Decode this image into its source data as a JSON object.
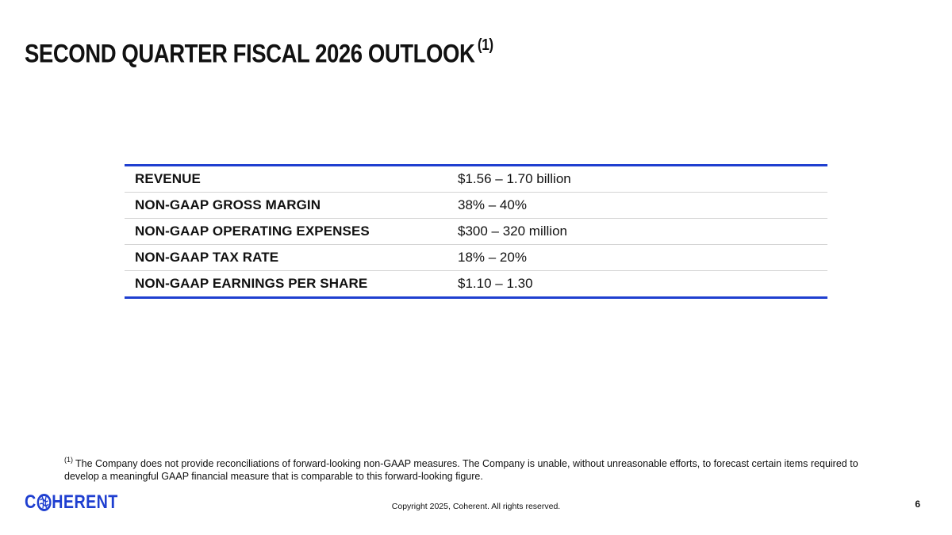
{
  "slide": {
    "title": "SECOND QUARTER FISCAL 2026 OUTLOOK",
    "title_footnote_marker": "(1)"
  },
  "outlook_table": {
    "rows": [
      {
        "metric": "REVENUE",
        "value": "$1.56 – 1.70 billion"
      },
      {
        "metric": "NON-GAAP GROSS MARGIN",
        "value": "38% – 40%"
      },
      {
        "metric": "NON-GAAP OPERATING EXPENSES",
        "value": "$300 – 320 million"
      },
      {
        "metric": "NON-GAAP TAX RATE",
        "value": "18% – 20%"
      },
      {
        "metric": "NON-GAAP EARNINGS PER SHARE",
        "value": "$1.10 – 1.30"
      }
    ]
  },
  "footnote": {
    "marker": "(1)",
    "text": "The Company does not provide reconciliations of forward-looking non-GAAP measures. The Company is unable, without unreasonable efforts, to forecast certain items required to develop a meaningful GAAP financial measure that is comparable to this forward-looking figure."
  },
  "footer": {
    "logo_prefix": "C",
    "logo_suffix": "HERENT",
    "logo_icon": "globe-o-icon",
    "copyright": "Copyright 2025, Coherent. All rights reserved.",
    "page_number": "6"
  },
  "colors": {
    "brand_blue": "#1f3fd0",
    "text": "#111111",
    "row_divider": "#d4d4d4"
  }
}
